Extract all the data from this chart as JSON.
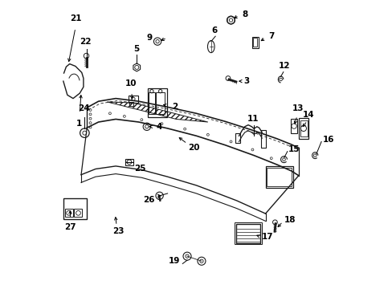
{
  "bg_color": "#ffffff",
  "line_color": "#1a1a1a",
  "font_size": 7.5,
  "font_weight": "bold",
  "figsize": [
    4.89,
    3.6
  ],
  "dpi": 100
}
